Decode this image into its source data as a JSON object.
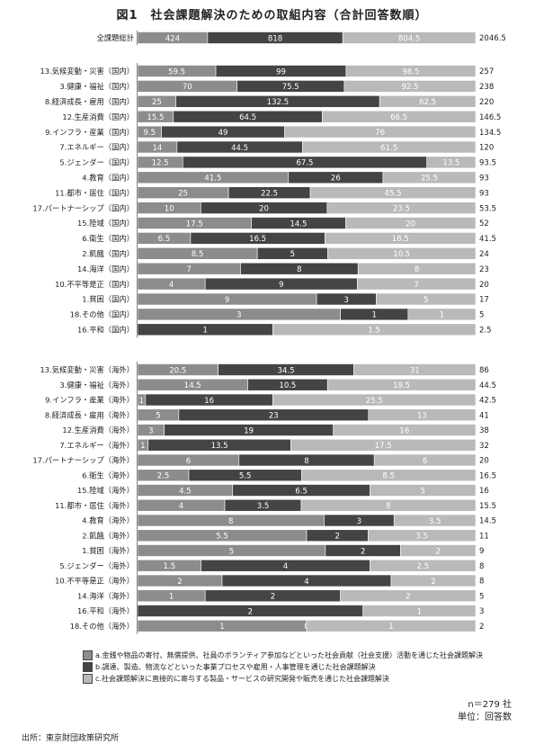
{
  "title": "図1　社会課題解決のための取組内容（合計回答数順）",
  "colors": {
    "a": "#8c8c8c",
    "b": "#444444",
    "c": "#b9b9b9"
  },
  "chart_data": {
    "type": "bar",
    "orientation": "horizontal",
    "stacked": true,
    "series_keys": [
      "a",
      "b",
      "c"
    ],
    "total_row": {
      "label": "全課題総計",
      "a": 424,
      "b": 818,
      "c": 804.5,
      "total": "2046.5"
    },
    "domestic": [
      {
        "label": "13.気候変動・災害（国内）",
        "a": 59.5,
        "b": 99,
        "c": 98.5,
        "total": "257"
      },
      {
        "label": "3.健康・福祉（国内）",
        "a": 70,
        "b": 75.5,
        "c": 92.5,
        "total": "238"
      },
      {
        "label": "8.経済成長・雇用（国内）",
        "a": 25,
        "b": 132.5,
        "c": 62.5,
        "total": "220"
      },
      {
        "label": "12.生産消費（国内）",
        "a": 15.5,
        "b": 64.5,
        "c": 66.5,
        "total": "146.5"
      },
      {
        "label": "9.インフラ・産業（国内）",
        "a": 9.5,
        "b": 49,
        "c": 76,
        "total": "134.5"
      },
      {
        "label": "7.エネルギー（国内）",
        "a": 14,
        "b": 44.5,
        "c": 61.5,
        "total": "120"
      },
      {
        "label": "5.ジェンダー（国内）",
        "a": 12.5,
        "b": 67.5,
        "c": 13.5,
        "total": "93.5"
      },
      {
        "label": "4.教育（国内）",
        "a": 41.5,
        "b": 26,
        "c": 25.5,
        "total": "93"
      },
      {
        "label": "11.都市・居住（国内）",
        "a": 25,
        "b": 22.5,
        "c": 45.5,
        "total": "93"
      },
      {
        "label": "17.パートナーシップ（国内）",
        "a": 10,
        "b": 20,
        "c": 23.5,
        "total": "53.5"
      },
      {
        "label": "15.陸域（国内）",
        "a": 17.5,
        "b": 14.5,
        "c": 20,
        "total": "52"
      },
      {
        "label": "6.衛生（国内）",
        "a": 6.5,
        "b": 16.5,
        "c": 18.5,
        "total": "41.5"
      },
      {
        "label": "2.飢餓（国内）",
        "a": 8.5,
        "b": 5,
        "c": 10.5,
        "total": "24"
      },
      {
        "label": "14.海洋（国内）",
        "a": 7,
        "b": 8,
        "c": 8,
        "total": "23"
      },
      {
        "label": "10.不平等是正（国内）",
        "a": 4,
        "b": 9,
        "c": 7,
        "total": "20"
      },
      {
        "label": "1.貧困（国内）",
        "a": 9,
        "b": 3,
        "c": 5,
        "total": "17"
      },
      {
        "label": "18.その他（国内）",
        "a": 3,
        "b": 1,
        "c": 1,
        "total": "5"
      },
      {
        "label": "16.平和（国内）",
        "a": 0,
        "b": 1,
        "c": 1.5,
        "total": "2.5"
      }
    ],
    "overseas": [
      {
        "label": "13.気候変動・災害（海外）",
        "a": 20.5,
        "b": 34.5,
        "c": 31,
        "total": "86"
      },
      {
        "label": "3.健康・福祉（海外）",
        "a": 14.5,
        "b": 10.5,
        "c": 19.5,
        "total": "44.5"
      },
      {
        "label": "9.インフラ・産業（海外）",
        "a": 1,
        "b": 16,
        "c": 25.5,
        "total": "42.5"
      },
      {
        "label": "8.経済成長・雇用（海外）",
        "a": 5,
        "b": 23,
        "c": 13,
        "total": "41"
      },
      {
        "label": "12.生産消費（海外）",
        "a": 3,
        "b": 19,
        "c": 16,
        "total": "38"
      },
      {
        "label": "7.エネルギー（海外）",
        "a": 1,
        "b": 13.5,
        "c": 17.5,
        "total": "32"
      },
      {
        "label": "17.パートナーシップ（海外）",
        "a": 6,
        "b": 8,
        "c": 6,
        "total": "20"
      },
      {
        "label": "6.衛生（海外）",
        "a": 2.5,
        "b": 5.5,
        "c": 8.5,
        "total": "16.5"
      },
      {
        "label": "15.陸域（海外）",
        "a": 4.5,
        "b": 6.5,
        "c": 5,
        "total": "16"
      },
      {
        "label": "11.都市・居住（海外）",
        "a": 4,
        "b": 3.5,
        "c": 8,
        "total": "15.5"
      },
      {
        "label": "4.教育（海外）",
        "a": 8,
        "b": 3,
        "c": 3.5,
        "total": "14.5"
      },
      {
        "label": "2.飢餓（海外）",
        "a": 5.5,
        "b": 2,
        "c": 3.5,
        "total": "11"
      },
      {
        "label": "1.貧困（海外）",
        "a": 5,
        "b": 2,
        "c": 2,
        "total": "9"
      },
      {
        "label": "5.ジェンダー（海外）",
        "a": 1.5,
        "b": 4,
        "c": 2.5,
        "total": "8"
      },
      {
        "label": "10.不平等是正（海外）",
        "a": 2,
        "b": 4,
        "c": 2,
        "total": "8"
      },
      {
        "label": "14.海洋（海外）",
        "a": 1,
        "b": 2,
        "c": 2,
        "total": "5"
      },
      {
        "label": "16.平和（海外）",
        "a": 0,
        "b": 2,
        "c": 1,
        "total": "3"
      },
      {
        "label": "18.その他（海外）",
        "a": 1,
        "b": 0,
        "c": 1,
        "total": "2"
      }
    ]
  },
  "legend": {
    "a": "a.金銭や物品の寄付、無償提供、社員のボランティア参加などといった社会貢献（社会支援）活動を通じた社会課題解決",
    "b": "b.調達、製造、物流などといった事業プロセスや雇用・人事管理を通じた社会課題解決",
    "c": "c.社会課題解決に直接的に寄与する製品・サービスの研究開発や販売を通じた社会課題解決"
  },
  "note_n": "n＝279 社",
  "note_unit": "単位：回答数",
  "source": "出所：東京財団政策研究所"
}
